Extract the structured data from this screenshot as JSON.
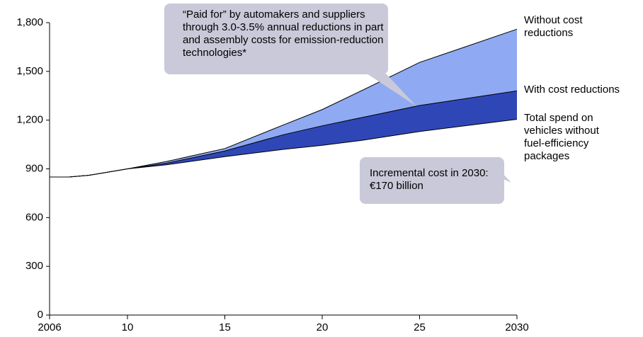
{
  "chart_data": {
    "type": "area",
    "x": [
      2006,
      2007,
      2008,
      2009,
      2010,
      2012,
      2015,
      2018,
      2020,
      2022,
      2025,
      2030
    ],
    "series": [
      {
        "name": "Without cost reductions",
        "color": "#8faaf2",
        "values": [
          850,
          850,
          860,
          880,
          900,
          945,
          1025,
          1170,
          1265,
          1380,
          1555,
          1760
        ]
      },
      {
        "name": "With cost reductions",
        "color": "#2f47b6",
        "values": [
          850,
          850,
          860,
          880,
          900,
          935,
          1010,
          1110,
          1165,
          1215,
          1290,
          1380
        ]
      },
      {
        "name": "Total spend on vehicles without fuel-efficiency packages",
        "color": "#ffffff",
        "values": [
          850,
          850,
          860,
          880,
          900,
          925,
          975,
          1020,
          1045,
          1075,
          1130,
          1205
        ]
      }
    ],
    "annotations": [
      "“Paid for” by automakers and suppliers through 3.0-3.5% annual reductions in part and assembly costs for emission-reduction technologies*",
      "Incremental cost in 2030:  €170 billion"
    ],
    "xlim": [
      2006,
      2030
    ],
    "xticks": [
      {
        "value": 2006,
        "label": "2006"
      },
      {
        "value": 2010,
        "label": "10"
      },
      {
        "value": 2015,
        "label": "15"
      },
      {
        "value": 2020,
        "label": "20"
      },
      {
        "value": 2025,
        "label": "25"
      },
      {
        "value": 2030,
        "label": "2030"
      }
    ],
    "ylim": [
      0,
      1800
    ],
    "yticks": [
      0,
      300,
      600,
      900,
      {
        "value": 1200,
        "label": "1,200"
      },
      {
        "value": 1500,
        "label": "1,500"
      },
      {
        "value": 1800,
        "label": "1,800"
      }
    ]
  }
}
